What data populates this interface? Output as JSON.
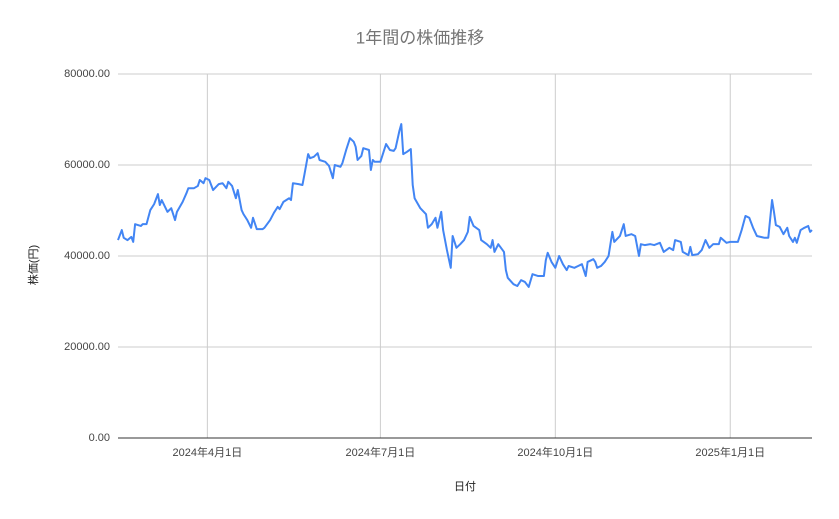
{
  "chart_data": {
    "type": "line",
    "title": "1年間の株価推移",
    "x_label": "日付",
    "y_label": "株価(円)",
    "x": [
      "2024-02-14",
      "2024-02-16",
      "2024-02-17",
      "2024-02-19",
      "2024-02-21",
      "2024-02-22",
      "2024-02-23",
      "2024-02-26",
      "2024-02-27",
      "2024-02-29",
      "2024-03-02",
      "2024-03-04",
      "2024-03-06",
      "2024-03-07",
      "2024-03-08",
      "2024-03-11",
      "2024-03-13",
      "2024-03-15",
      "2024-03-16",
      "2024-03-19",
      "2024-03-21",
      "2024-03-22",
      "2024-03-25",
      "2024-03-27",
      "2024-03-28",
      "2024-03-30",
      "2024-03-31",
      "2024-04-02",
      "2024-04-04",
      "2024-04-07",
      "2024-04-09",
      "2024-04-11",
      "2024-04-12",
      "2024-04-14",
      "2024-04-16",
      "2024-04-17",
      "2024-04-19",
      "2024-04-20",
      "2024-04-22",
      "2024-04-24",
      "2024-04-25",
      "2024-04-27",
      "2024-04-30",
      "2024-05-01",
      "2024-05-04",
      "2024-05-06",
      "2024-05-08",
      "2024-05-09",
      "2024-05-11",
      "2024-05-14",
      "2024-05-15",
      "2024-05-16",
      "2024-05-19",
      "2024-05-21",
      "2024-05-22",
      "2024-05-24",
      "2024-05-25",
      "2024-05-27",
      "2024-05-29",
      "2024-05-30",
      "2024-06-02",
      "2024-06-04",
      "2024-06-06",
      "2024-06-07",
      "2024-06-10",
      "2024-06-11",
      "2024-06-13",
      "2024-06-15",
      "2024-06-17",
      "2024-06-18",
      "2024-06-19",
      "2024-06-21",
      "2024-06-22",
      "2024-06-25",
      "2024-06-26",
      "2024-06-27",
      "2024-06-28",
      "2024-07-01",
      "2024-07-03",
      "2024-07-04",
      "2024-07-06",
      "2024-07-08",
      "2024-07-09",
      "2024-07-11",
      "2024-07-12",
      "2024-07-13",
      "2024-07-15",
      "2024-07-17",
      "2024-07-18",
      "2024-07-19",
      "2024-07-22",
      "2024-07-25",
      "2024-07-26",
      "2024-07-28",
      "2024-07-30",
      "2024-07-31",
      "2024-08-02",
      "2024-08-03",
      "2024-08-05",
      "2024-08-07",
      "2024-08-08",
      "2024-08-10",
      "2024-08-12",
      "2024-08-14",
      "2024-08-16",
      "2024-08-17",
      "2024-08-19",
      "2024-08-22",
      "2024-08-23",
      "2024-08-26",
      "2024-08-28",
      "2024-08-29",
      "2024-08-30",
      "2024-09-01",
      "2024-09-04",
      "2024-09-05",
      "2024-09-06",
      "2024-09-09",
      "2024-09-11",
      "2024-09-13",
      "2024-09-15",
      "2024-09-17",
      "2024-09-19",
      "2024-09-22",
      "2024-09-25",
      "2024-09-26",
      "2024-09-27",
      "2024-09-29",
      "2024-10-01",
      "2024-10-03",
      "2024-10-05",
      "2024-10-07",
      "2024-10-08",
      "2024-10-11",
      "2024-10-13",
      "2024-10-15",
      "2024-10-17",
      "2024-10-18",
      "2024-10-21",
      "2024-10-22",
      "2024-10-23",
      "2024-10-25",
      "2024-10-27",
      "2024-10-29",
      "2024-10-31",
      "2024-11-01",
      "2024-11-04",
      "2024-11-06",
      "2024-11-07",
      "2024-11-10",
      "2024-11-12",
      "2024-11-14",
      "2024-11-15",
      "2024-11-17",
      "2024-11-20",
      "2024-11-22",
      "2024-11-25",
      "2024-11-27",
      "2024-11-30",
      "2024-12-02",
      "2024-12-03",
      "2024-12-06",
      "2024-12-07",
      "2024-12-10",
      "2024-12-11",
      "2024-12-12",
      "2024-12-15",
      "2024-12-17",
      "2024-12-19",
      "2024-12-21",
      "2024-12-23",
      "2024-12-26",
      "2024-12-27",
      "2024-12-30",
      "2025-01-01",
      "2025-01-05",
      "2025-01-07",
      "2025-01-09",
      "2025-01-11",
      "2025-01-13",
      "2025-01-15",
      "2025-01-19",
      "2025-01-21",
      "2025-01-23",
      "2025-01-24",
      "2025-01-25",
      "2025-01-27",
      "2025-01-29",
      "2025-01-31",
      "2025-02-01",
      "2025-02-03",
      "2025-02-04",
      "2025-02-05",
      "2025-02-07",
      "2025-02-09",
      "2025-02-11",
      "2025-02-12",
      "2025-02-13"
    ],
    "values": [
      43500,
      45700,
      44000,
      43500,
      44200,
      43100,
      47000,
      46600,
      47000,
      47000,
      50100,
      51400,
      53600,
      51200,
      52300,
      49700,
      50500,
      47900,
      49700,
      51900,
      53800,
      54900,
      54900,
      55400,
      56700,
      56000,
      57100,
      56700,
      54500,
      55800,
      56000,
      54900,
      56300,
      55400,
      52700,
      54500,
      50100,
      49200,
      47900,
      46200,
      48400,
      45900,
      45900,
      46200,
      47900,
      49500,
      50800,
      50300,
      51900,
      52700,
      52300,
      56000,
      55800,
      55600,
      57800,
      62400,
      61500,
      61800,
      62600,
      61100,
      60700,
      59800,
      57100,
      60000,
      59600,
      60400,
      63300,
      65900,
      65100,
      64000,
      61100,
      62000,
      63700,
      63300,
      58900,
      61100,
      60700,
      60700,
      63300,
      64600,
      63300,
      63100,
      63700,
      67500,
      69000,
      62400,
      62900,
      63500,
      55600,
      52700,
      50500,
      49200,
      46200,
      47000,
      48400,
      46200,
      49700,
      45700,
      41300,
      37400,
      44400,
      41800,
      42600,
      43500,
      45300,
      48600,
      46600,
      45700,
      43500,
      42600,
      41800,
      43500,
      40900,
      42600,
      40900,
      36900,
      35200,
      33800,
      33400,
      34700,
      34300,
      33200,
      36000,
      35600,
      35600,
      39100,
      40700,
      38700,
      37400,
      40000,
      38200,
      36900,
      37800,
      37400,
      37800,
      38200,
      35600,
      38700,
      39300,
      38700,
      37400,
      37800,
      38700,
      40000,
      45300,
      43100,
      44400,
      47000,
      44400,
      44800,
      44400,
      40000,
      42600,
      42400,
      42600,
      42400,
      42900,
      40900,
      41800,
      41300,
      43500,
      43100,
      40900,
      40200,
      42000,
      40200,
      40400,
      41300,
      43500,
      41800,
      42600,
      42600,
      44000,
      42900,
      43100,
      43100,
      45700,
      48800,
      48400,
      46200,
      44400,
      44000,
      44000,
      52300,
      49700,
      46800,
      46400,
      44800,
      46200,
      44400,
      43100,
      44000,
      42900,
      45700,
      46200,
      46600,
      45300,
      45700
    ],
    "color": "#4285f4",
    "xlim": [
      "2024-02-14",
      "2025-02-13"
    ],
    "xticks": [
      {
        "value": "2024-04-01",
        "label": "2024年4月1日"
      },
      {
        "value": "2024-07-01",
        "label": "2024年7月1日"
      },
      {
        "value": "2024-10-01",
        "label": "2024年10月1日"
      },
      {
        "value": "2025-01-01",
        "label": "2025年1月1日"
      }
    ],
    "ylim": [
      0,
      80000
    ],
    "yticks": [
      {
        "value": 0,
        "label": "0.00"
      },
      {
        "value": 20000,
        "label": "20000.00"
      },
      {
        "value": 40000,
        "label": "40000.00"
      },
      {
        "value": 60000,
        "label": "60000.00"
      },
      {
        "value": 80000,
        "label": "80000.00"
      }
    ],
    "grid": true
  }
}
